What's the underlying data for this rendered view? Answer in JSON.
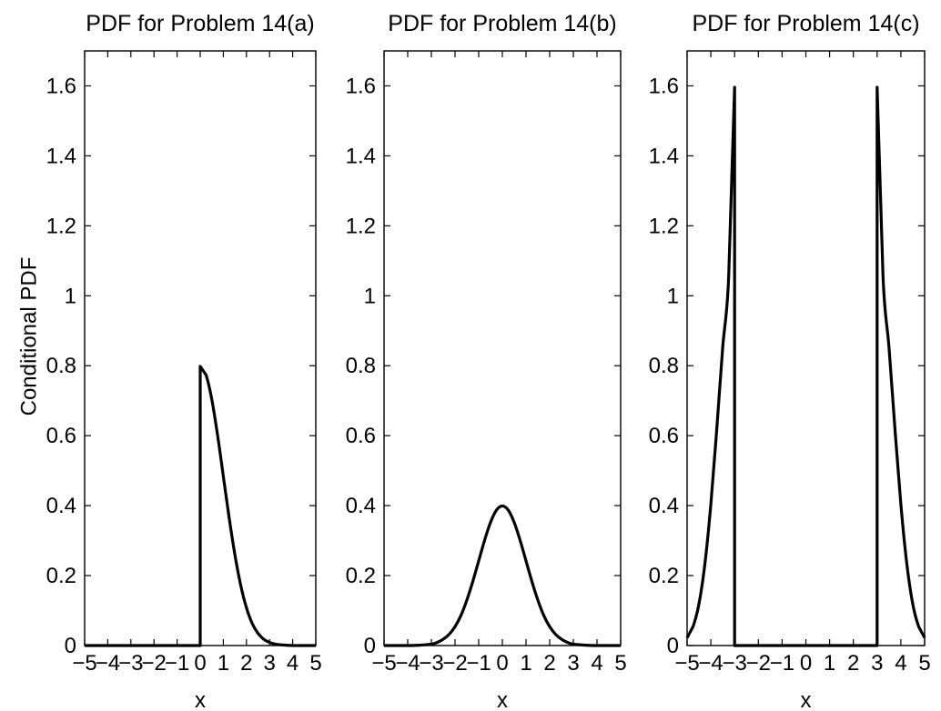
{
  "figure": {
    "ylabel": "Conditional PDF"
  },
  "chart_data": [
    {
      "type": "line",
      "title": "PDF for Problem 14(a)",
      "xlabel": "x",
      "ylabel": "Conditional PDF",
      "xlim": [
        -5,
        5
      ],
      "ylim": [
        0,
        1.7
      ],
      "xticks": [
        "−5",
        "−4",
        "−3",
        "−2",
        "−1",
        "0",
        "1",
        "2",
        "3",
        "4",
        "5"
      ],
      "yticks": [
        "0",
        "0.2",
        "0.4",
        "0.6",
        "0.8",
        "1",
        "1.2",
        "1.4",
        "1.6"
      ],
      "grid": false,
      "series": [
        {
          "x": [
            -5,
            -4,
            -3,
            -2,
            -1,
            0,
            0,
            0.25,
            0.5,
            0.75,
            1,
            1.25,
            1.5,
            1.75,
            2,
            2.25,
            2.5,
            2.75,
            3,
            3.25,
            3.5,
            4,
            4.5,
            5
          ],
          "y": [
            0,
            0,
            0,
            0,
            0,
            0,
            0.798,
            0.774,
            0.704,
            0.602,
            0.484,
            0.366,
            0.26,
            0.173,
            0.108,
            0.063,
            0.035,
            0.018,
            0.009,
            0.004,
            0.002,
            0,
            0,
            0
          ]
        }
      ]
    },
    {
      "type": "line",
      "title": "PDF for Problem 14(b)",
      "xlabel": "x",
      "ylabel": "",
      "xlim": [
        -5,
        5
      ],
      "ylim": [
        0,
        1.7
      ],
      "xticks": [
        "−5",
        "−4",
        "−3",
        "−2",
        "−1",
        "0",
        "1",
        "2",
        "3",
        "4",
        "5"
      ],
      "yticks": [
        "0",
        "0.2",
        "0.4",
        "0.6",
        "0.8",
        "1",
        "1.2",
        "1.4",
        "1.6"
      ],
      "grid": false,
      "series": [
        {
          "x": [
            -5,
            -4.5,
            -4,
            -3.5,
            -3,
            -2.75,
            -2.5,
            -2.25,
            -2,
            -1.75,
            -1.5,
            -1.25,
            -1,
            -0.75,
            -0.5,
            -0.25,
            0,
            0.25,
            0.5,
            0.75,
            1,
            1.25,
            1.5,
            1.75,
            2,
            2.25,
            2.5,
            2.75,
            3,
            3.5,
            4,
            4.5,
            5
          ],
          "y": [
            0,
            0,
            0,
            0.001,
            0.004,
            0.009,
            0.018,
            0.032,
            0.054,
            0.086,
            0.13,
            0.183,
            0.242,
            0.301,
            0.352,
            0.387,
            0.399,
            0.387,
            0.352,
            0.301,
            0.242,
            0.183,
            0.13,
            0.086,
            0.054,
            0.032,
            0.018,
            0.009,
            0.004,
            0.001,
            0,
            0,
            0
          ]
        }
      ]
    },
    {
      "type": "line",
      "title": "PDF for Problem 14(c)",
      "xlabel": "x",
      "ylabel": "",
      "xlim": [
        -5,
        5
      ],
      "ylim": [
        0,
        1.7
      ],
      "xticks": [
        "−5",
        "−4",
        "−3",
        "−2",
        "−1",
        "0",
        "1",
        "2",
        "3",
        "4",
        "5"
      ],
      "yticks": [
        "0",
        "0.2",
        "0.4",
        "0.6",
        "0.8",
        "1",
        "1.2",
        "1.4",
        "1.6"
      ],
      "grid": false,
      "series": [
        {
          "x": [
            -5,
            -4.75,
            -4.5,
            -4.25,
            -4,
            -3.75,
            -3.5,
            -3.25,
            -3,
            -3,
            -2,
            -1,
            0,
            1,
            2,
            3,
            3,
            3.25,
            3.5,
            3.75,
            4,
            4.25,
            4.5,
            4.75,
            5
          ],
          "y": [
            0.022,
            0.054,
            0.119,
            0.234,
            0.404,
            0.62,
            0.853,
            1.052,
            1.596,
            0,
            0,
            0,
            0,
            0,
            0,
            0,
            1.596,
            1.052,
            0.853,
            0.62,
            0.404,
            0.234,
            0.119,
            0.054,
            0.022
          ]
        }
      ]
    }
  ]
}
